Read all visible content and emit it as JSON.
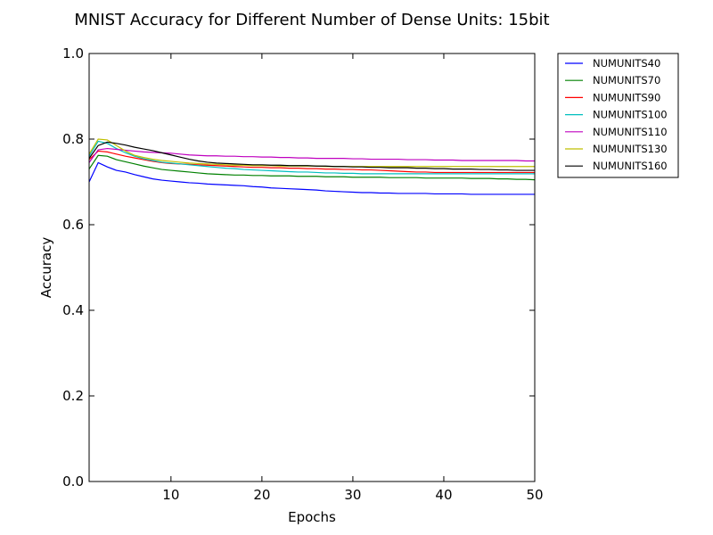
{
  "chart_data": {
    "type": "line",
    "title": "MNIST Accuracy for Different Number of Dense Units: 15bit",
    "xlabel": "Epochs",
    "ylabel": "Accuracy",
    "xlim": [
      1,
      50
    ],
    "ylim": [
      0.0,
      1.0
    ],
    "xticks": [
      10,
      20,
      30,
      40,
      50
    ],
    "xtick_labels": [
      "10",
      "20",
      "30",
      "40",
      "50"
    ],
    "yticks": [
      0.0,
      0.2,
      0.4,
      0.6,
      0.8,
      1.0
    ],
    "ytick_labels": [
      "0.0",
      "0.2",
      "0.4",
      "0.6",
      "0.8",
      "1.0"
    ],
    "grid": false,
    "legend_position": "outside-top-right",
    "x": [
      1,
      2,
      3,
      4,
      5,
      6,
      7,
      8,
      9,
      10,
      11,
      12,
      13,
      14,
      15,
      16,
      17,
      18,
      19,
      20,
      21,
      22,
      23,
      24,
      25,
      26,
      27,
      28,
      29,
      30,
      31,
      32,
      33,
      34,
      35,
      36,
      37,
      38,
      39,
      40,
      41,
      42,
      43,
      44,
      45,
      46,
      47,
      48,
      49,
      50
    ],
    "series": [
      {
        "name": "NUMUNITS40",
        "color": "#0000ff",
        "values": [
          0.7,
          0.745,
          0.735,
          0.727,
          0.723,
          0.717,
          0.712,
          0.707,
          0.704,
          0.702,
          0.7,
          0.698,
          0.697,
          0.695,
          0.694,
          0.693,
          0.692,
          0.691,
          0.689,
          0.688,
          0.686,
          0.685,
          0.684,
          0.683,
          0.682,
          0.681,
          0.679,
          0.678,
          0.677,
          0.676,
          0.675,
          0.675,
          0.674,
          0.674,
          0.673,
          0.673,
          0.673,
          0.673,
          0.672,
          0.672,
          0.672,
          0.672,
          0.671,
          0.671,
          0.671,
          0.671,
          0.671,
          0.671,
          0.671,
          0.671
        ]
      },
      {
        "name": "NUMUNITS70",
        "color": "#008000",
        "values": [
          0.73,
          0.762,
          0.76,
          0.752,
          0.747,
          0.742,
          0.737,
          0.733,
          0.729,
          0.727,
          0.725,
          0.723,
          0.721,
          0.719,
          0.718,
          0.717,
          0.716,
          0.716,
          0.715,
          0.715,
          0.714,
          0.714,
          0.714,
          0.713,
          0.713,
          0.713,
          0.712,
          0.712,
          0.712,
          0.711,
          0.711,
          0.711,
          0.711,
          0.71,
          0.71,
          0.71,
          0.71,
          0.709,
          0.709,
          0.709,
          0.709,
          0.709,
          0.708,
          0.708,
          0.708,
          0.707,
          0.707,
          0.706,
          0.706,
          0.705
        ]
      },
      {
        "name": "NUMUNITS90",
        "color": "#ff0000",
        "values": [
          0.752,
          0.772,
          0.77,
          0.765,
          0.76,
          0.756,
          0.752,
          0.748,
          0.745,
          0.743,
          0.742,
          0.741,
          0.74,
          0.739,
          0.738,
          0.737,
          0.736,
          0.735,
          0.734,
          0.734,
          0.733,
          0.733,
          0.732,
          0.732,
          0.731,
          0.731,
          0.73,
          0.73,
          0.729,
          0.729,
          0.728,
          0.728,
          0.727,
          0.726,
          0.725,
          0.724,
          0.723,
          0.723,
          0.722,
          0.722,
          0.722,
          0.722,
          0.722,
          0.722,
          0.722,
          0.722,
          0.722,
          0.722,
          0.722,
          0.722
        ]
      },
      {
        "name": "NUMUNITS100",
        "color": "#00bfbf",
        "values": [
          0.76,
          0.795,
          0.79,
          0.778,
          0.768,
          0.76,
          0.754,
          0.75,
          0.746,
          0.744,
          0.742,
          0.74,
          0.738,
          0.736,
          0.734,
          0.732,
          0.731,
          0.729,
          0.728,
          0.727,
          0.726,
          0.725,
          0.724,
          0.723,
          0.723,
          0.722,
          0.721,
          0.721,
          0.72,
          0.72,
          0.719,
          0.719,
          0.719,
          0.719,
          0.719,
          0.719,
          0.719,
          0.719,
          0.719,
          0.719,
          0.719,
          0.719,
          0.719,
          0.719,
          0.719,
          0.719,
          0.719,
          0.719,
          0.719,
          0.719
        ]
      },
      {
        "name": "NUMUNITS110",
        "color": "#bf00bf",
        "values": [
          0.745,
          0.775,
          0.778,
          0.776,
          0.774,
          0.772,
          0.77,
          0.769,
          0.768,
          0.767,
          0.765,
          0.763,
          0.762,
          0.761,
          0.761,
          0.76,
          0.76,
          0.759,
          0.759,
          0.758,
          0.758,
          0.757,
          0.757,
          0.756,
          0.756,
          0.755,
          0.755,
          0.755,
          0.755,
          0.754,
          0.754,
          0.753,
          0.753,
          0.753,
          0.753,
          0.752,
          0.752,
          0.752,
          0.751,
          0.751,
          0.751,
          0.75,
          0.75,
          0.75,
          0.75,
          0.75,
          0.75,
          0.75,
          0.749,
          0.749
        ]
      },
      {
        "name": "NUMUNITS130",
        "color": "#bfbf00",
        "values": [
          0.765,
          0.8,
          0.798,
          0.785,
          0.772,
          0.762,
          0.757,
          0.753,
          0.75,
          0.748,
          0.746,
          0.744,
          0.743,
          0.742,
          0.741,
          0.74,
          0.739,
          0.739,
          0.738,
          0.738,
          0.738,
          0.737,
          0.737,
          0.737,
          0.737,
          0.737,
          0.736,
          0.736,
          0.736,
          0.736,
          0.736,
          0.736,
          0.736,
          0.736,
          0.736,
          0.736,
          0.736,
          0.736,
          0.736,
          0.736,
          0.736,
          0.736,
          0.736,
          0.736,
          0.736,
          0.736,
          0.736,
          0.736,
          0.736,
          0.736
        ]
      },
      {
        "name": "NUMUNITS160",
        "color": "#000000",
        "values": [
          0.755,
          0.785,
          0.793,
          0.79,
          0.786,
          0.781,
          0.777,
          0.773,
          0.768,
          0.763,
          0.758,
          0.753,
          0.749,
          0.746,
          0.744,
          0.743,
          0.742,
          0.741,
          0.74,
          0.74,
          0.739,
          0.739,
          0.738,
          0.738,
          0.738,
          0.737,
          0.737,
          0.736,
          0.736,
          0.735,
          0.735,
          0.734,
          0.734,
          0.733,
          0.733,
          0.733,
          0.732,
          0.732,
          0.731,
          0.731,
          0.73,
          0.73,
          0.73,
          0.729,
          0.729,
          0.728,
          0.728,
          0.727,
          0.727,
          0.727
        ]
      }
    ]
  }
}
